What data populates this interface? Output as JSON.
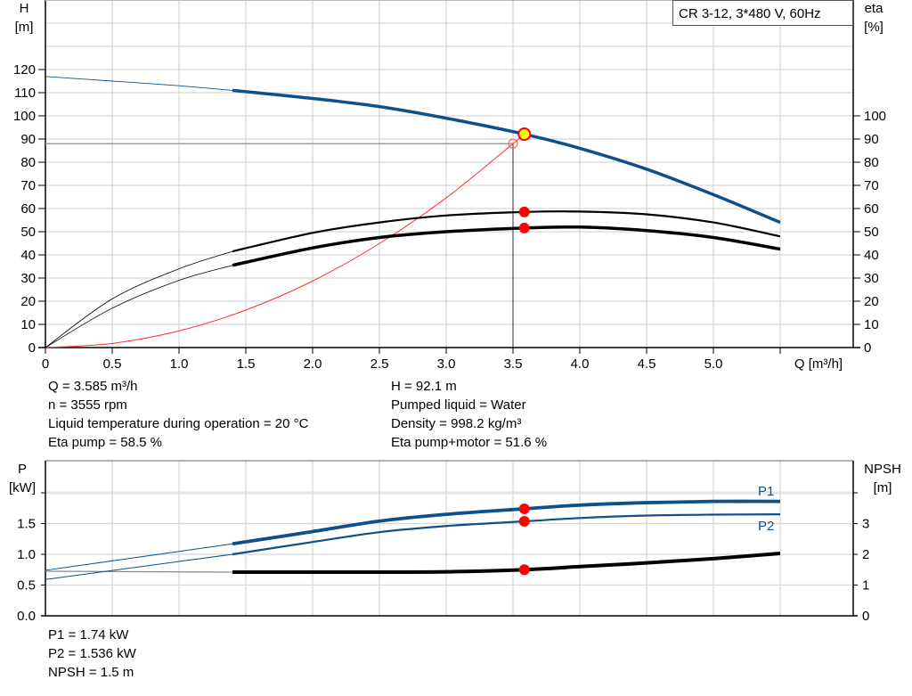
{
  "chart_data": [
    {
      "type": "line",
      "title": "CR 3-12, 3*480 V, 60Hz",
      "xlabel": "Q [m³/h]",
      "ylabel_left": [
        "H",
        "[m]"
      ],
      "ylabel_right": [
        "eta",
        "[%]"
      ],
      "xlim": [
        0,
        5.5
      ],
      "ylim_left": [
        0,
        150
      ],
      "ylim_right": [
        0,
        150
      ],
      "x_ticks": [
        "0",
        "0.5",
        "1.0",
        "1.5",
        "2.0",
        "2.5",
        "3.0",
        "3.5",
        "4.0",
        "4.5",
        "5.0"
      ],
      "y_ticks_left": [
        "0",
        "10",
        "20",
        "30",
        "40",
        "50",
        "60",
        "70",
        "80",
        "90",
        "100",
        "110",
        "120"
      ],
      "y_ticks_right": [
        "0",
        "10",
        "20",
        "30",
        "40",
        "50",
        "60",
        "70",
        "80",
        "90",
        "100"
      ],
      "grid": true,
      "colors": {
        "head": "#0f4f8a",
        "eta": "#000000",
        "system": "#ff3030",
        "duty_fill": "#ffff00",
        "duty_point": "#ff0000"
      },
      "series": [
        {
          "key": "head",
          "axis": "left",
          "x": [
            0,
            0.5,
            1.0,
            1.4,
            2.0,
            2.5,
            3.0,
            3.585,
            4.0,
            4.5,
            5.0,
            5.5
          ],
          "y": [
            117,
            115,
            113,
            111,
            107.5,
            104,
            99,
            92.1,
            86,
            77,
            66,
            54
          ]
        },
        {
          "key": "eta_pump",
          "axis": "right",
          "x": [
            0,
            0.5,
            1.0,
            1.4,
            2.0,
            2.5,
            3.0,
            3.585,
            4.0,
            4.5,
            5.0,
            5.5
          ],
          "y": [
            0,
            21,
            34,
            41.5,
            49.5,
            54,
            57,
            58.5,
            58.7,
            57.5,
            54,
            48
          ]
        },
        {
          "key": "eta_pump_motor",
          "axis": "right",
          "x": [
            0,
            0.5,
            1.0,
            1.4,
            2.0,
            2.5,
            3.0,
            3.585,
            4.0,
            4.5,
            5.0,
            5.5
          ],
          "y": [
            0,
            17,
            29,
            35.5,
            43,
            47.5,
            50,
            51.6,
            52,
            50.5,
            47.5,
            42.5
          ]
        },
        {
          "key": "system",
          "axis": "left",
          "x": [
            0,
            0.5,
            1.0,
            1.5,
            2.0,
            2.5,
            3.0,
            3.5,
            3.585
          ],
          "y": [
            0,
            1.8,
            7.2,
            16.2,
            28.7,
            44.9,
            64.6,
            88,
            92.1
          ]
        }
      ],
      "duty_point": {
        "Q": 3.585,
        "H": 92.1,
        "eta_pump": 58.5,
        "eta_pump_motor": 51.6
      },
      "reference_point": {
        "Q": 3.5,
        "H": 88
      }
    },
    {
      "type": "line",
      "ylabel_left": [
        "P",
        "[kW]"
      ],
      "ylabel_right": [
        "NPSH",
        "[m]"
      ],
      "xlim": [
        0,
        5.5
      ],
      "ylim_left": [
        0,
        2.5
      ],
      "ylim_right": [
        0,
        5
      ],
      "y_ticks_left": [
        "0.0",
        "0.5",
        "1.0",
        "1.5"
      ],
      "y_ticks_right": [
        "0",
        "1",
        "2",
        "3"
      ],
      "grid": true,
      "series": [
        {
          "key": "P1",
          "name": "P1",
          "axis": "left",
          "x": [
            0,
            0.7,
            1.4,
            2.0,
            2.5,
            3.0,
            3.585,
            4.0,
            4.5,
            5.0,
            5.5
          ],
          "y": [
            0.74,
            0.955,
            1.17,
            1.37,
            1.54,
            1.65,
            1.74,
            1.8,
            1.84,
            1.86,
            1.86
          ]
        },
        {
          "key": "P2",
          "name": "P2",
          "axis": "left",
          "x": [
            0,
            0.7,
            1.4,
            2.0,
            2.5,
            3.0,
            3.585,
            4.0,
            4.5,
            5.0,
            5.5
          ],
          "y": [
            0.59,
            0.795,
            1.0,
            1.2,
            1.36,
            1.46,
            1.536,
            1.59,
            1.63,
            1.645,
            1.65
          ]
        },
        {
          "key": "NPSH",
          "axis": "right",
          "x": [
            0,
            0.7,
            1.4,
            2.0,
            2.5,
            3.0,
            3.585,
            4.0,
            4.5,
            5.0,
            5.5
          ],
          "y": [
            1.45,
            1.44,
            1.42,
            1.42,
            1.42,
            1.43,
            1.5,
            1.6,
            1.72,
            1.86,
            2.03
          ]
        }
      ],
      "duty_point": {
        "Q": 3.585,
        "P1": 1.74,
        "P2": 1.536,
        "NPSH": 1.5
      }
    }
  ],
  "info_top": {
    "left": [
      "Q = 3.585 m³/h",
      "n = 3555 rpm",
      "Liquid temperature during operation = 20 °C",
      "Eta pump = 58.5 %"
    ],
    "right": [
      "H = 92.1 m",
      "Pumped liquid = Water",
      "Density = 998.2 kg/m³",
      "Eta pump+motor = 51.6 %"
    ]
  },
  "info_bottom": [
    "P1 = 1.74 kW",
    "P2 = 1.536 kW",
    "NPSH = 1.5 m"
  ]
}
